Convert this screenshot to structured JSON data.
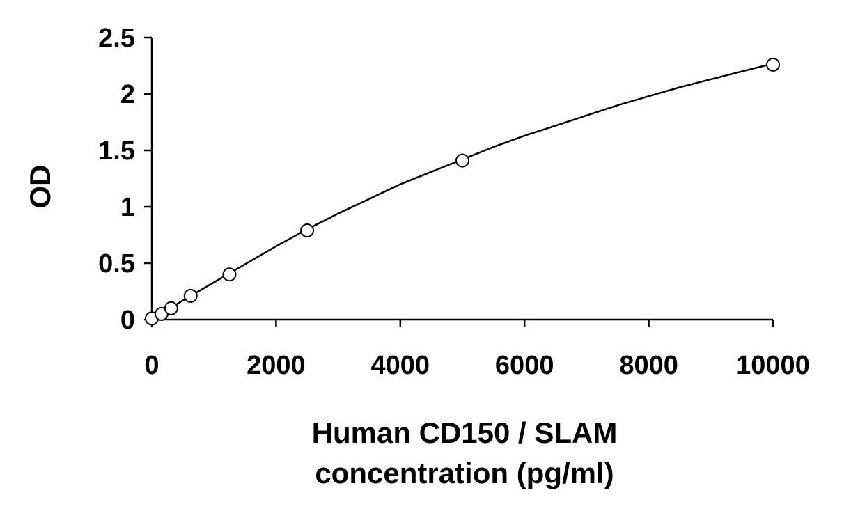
{
  "chart_data": {
    "type": "scatter",
    "title": "",
    "xlabel_lines": [
      "Human CD150 / SLAM",
      "concentration (pg/ml)"
    ],
    "ylabel": "OD",
    "xlim": [
      0,
      10000
    ],
    "ylim": [
      0,
      2.5
    ],
    "xticks": [
      0,
      2000,
      4000,
      6000,
      8000,
      10000
    ],
    "yticks": [
      0,
      0.5,
      1,
      1.5,
      2,
      2.5
    ],
    "xtick_labels": [
      "0",
      "2000",
      "4000",
      "6000",
      "8000",
      "10000"
    ],
    "ytick_labels": [
      "0",
      "0.5",
      "1",
      "1.5",
      "2",
      "2.5"
    ],
    "grid": false,
    "legend": "none",
    "series": [
      {
        "x": [
          0,
          156,
          312,
          625,
          1250,
          2500,
          5000,
          10000
        ],
        "y": [
          0.01,
          0.05,
          0.1,
          0.21,
          0.4,
          0.79,
          1.41,
          2.26
        ]
      }
    ],
    "fit_curve": {
      "x": [
        0,
        500,
        1000,
        1500,
        2000,
        2500,
        3000,
        3500,
        4000,
        4500,
        5000,
        5500,
        6000,
        6500,
        7000,
        7500,
        8000,
        8500,
        9000,
        9500,
        10000
      ],
      "y": [
        0.0,
        0.17,
        0.33,
        0.49,
        0.65,
        0.8,
        0.94,
        1.07,
        1.2,
        1.31,
        1.42,
        1.53,
        1.63,
        1.72,
        1.81,
        1.9,
        1.98,
        2.06,
        2.13,
        2.2,
        2.27
      ]
    }
  }
}
